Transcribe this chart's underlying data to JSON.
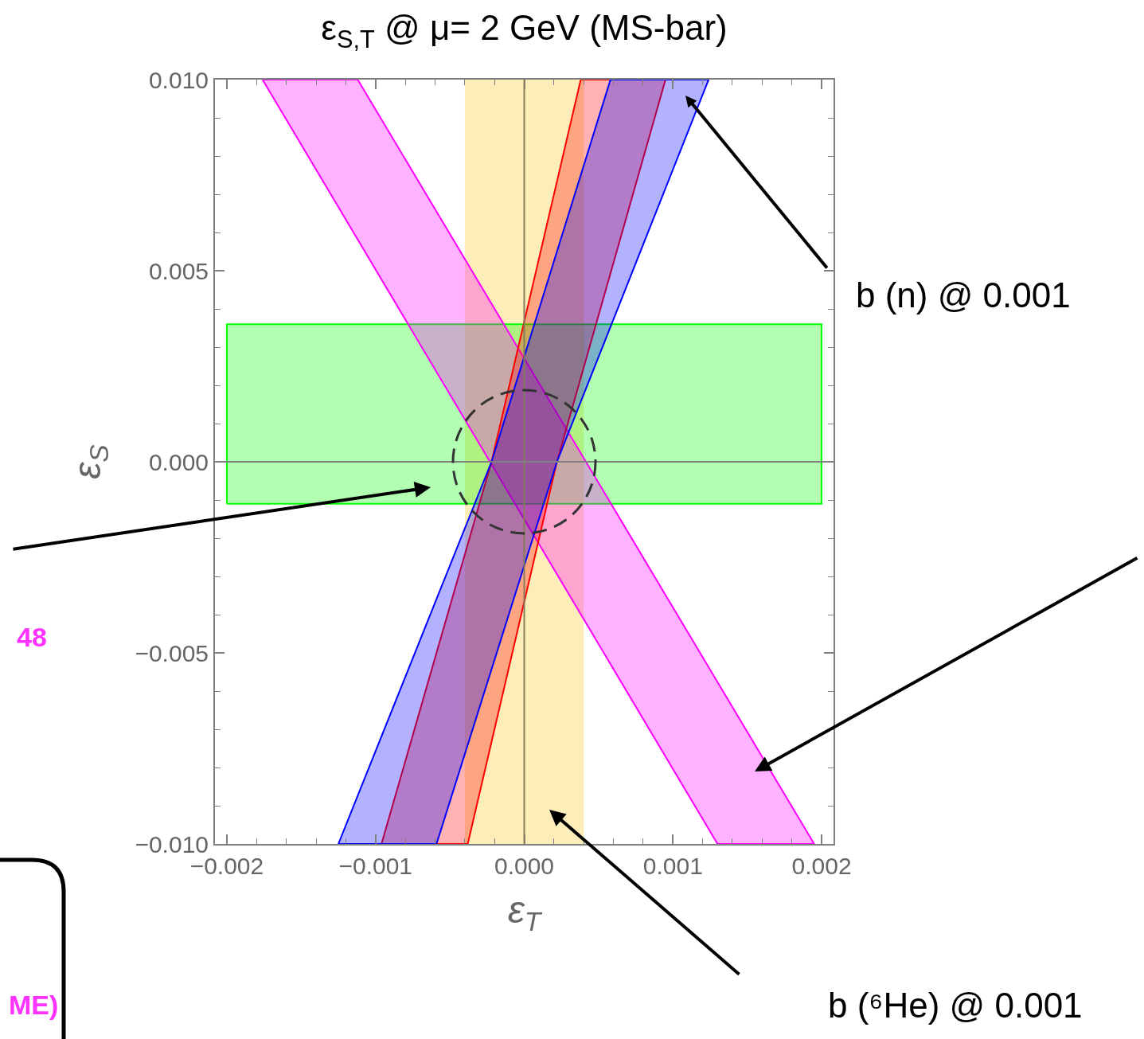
{
  "chart_data": {
    "type": "area",
    "title": "ε$_{S,T}$ @ μ= 2 GeV (MS-bar)",
    "xlabel": "ε$_{T}$",
    "ylabel": "ε$_{S}$",
    "xlim": [
      -0.00208,
      0.00208
    ],
    "ylim": [
      -0.01,
      0.01
    ],
    "xticks": [
      {
        "value": -0.002,
        "label": "−0.002"
      },
      {
        "value": -0.0018,
        "label": null
      },
      {
        "value": -0.0016,
        "label": null
      },
      {
        "value": -0.0014,
        "label": null
      },
      {
        "value": -0.0012,
        "label": null
      },
      {
        "value": -0.001,
        "label": "−0.001"
      },
      {
        "value": -0.0008,
        "label": null
      },
      {
        "value": -0.0006,
        "label": null
      },
      {
        "value": -0.0004,
        "label": null
      },
      {
        "value": -0.0002,
        "label": null
      },
      {
        "value": 0,
        "label": "0.000"
      },
      {
        "value": 0.0002,
        "label": null
      },
      {
        "value": 0.0004,
        "label": null
      },
      {
        "value": 0.0006,
        "label": null
      },
      {
        "value": 0.0008,
        "label": null
      },
      {
        "value": 0.001,
        "label": "0.001"
      },
      {
        "value": 0.0012,
        "label": null
      },
      {
        "value": 0.0014,
        "label": null
      },
      {
        "value": 0.0016,
        "label": null
      },
      {
        "value": 0.0018,
        "label": null
      },
      {
        "value": 0.002,
        "label": "0.002"
      }
    ],
    "yticks": [
      {
        "value": -0.01,
        "label": "−0.010"
      },
      {
        "value": -0.009,
        "label": null
      },
      {
        "value": -0.008,
        "label": null
      },
      {
        "value": -0.007,
        "label": null
      },
      {
        "value": -0.006,
        "label": null
      },
      {
        "value": -0.005,
        "label": "−0.005"
      },
      {
        "value": -0.004,
        "label": null
      },
      {
        "value": -0.003,
        "label": null
      },
      {
        "value": -0.002,
        "label": null
      },
      {
        "value": -0.001,
        "label": null
      },
      {
        "value": 0,
        "label": "0.000"
      },
      {
        "value": 0.001,
        "label": null
      },
      {
        "value": 0.002,
        "label": null
      },
      {
        "value": 0.003,
        "label": null
      },
      {
        "value": 0.004,
        "label": null
      },
      {
        "value": 0.005,
        "label": "0.005"
      },
      {
        "value": 0.006,
        "label": null
      },
      {
        "value": 0.007,
        "label": null
      },
      {
        "value": 0.008,
        "label": null
      },
      {
        "value": 0.009,
        "label": null
      },
      {
        "value": 0.01,
        "label": "0.010"
      }
    ],
    "grid": false,
    "bands": [
      {
        "axis": "x",
        "from": -0.0004,
        "to": 0.0004,
        "color": "#fcedb9"
      }
    ],
    "ref_lines": [
      {
        "axis": "x",
        "value": 0,
        "color": "#857c5a"
      },
      {
        "axis": "y",
        "value": 0,
        "color": "#808080"
      }
    ],
    "series": [
      {
        "color": "#00ff00",
        "x": [
          -0.002,
          0.002,
          0.002,
          -0.002,
          -0.002
        ],
        "values": [
          -0.0011,
          -0.0011,
          0.0036,
          0.0036,
          -0.0011
        ]
      },
      {
        "color": "#ff00ff",
        "x": [
          -0.00176,
          -0.00112,
          0.00195,
          0.0013,
          -0.00176
        ],
        "values": [
          0.01,
          0.01,
          -0.01,
          -0.01,
          0.01
        ]
      },
      {
        "color": "#ff0000",
        "x": [
          -0.00096,
          -0.00022,
          0.00038,
          0.00095,
          0.00022,
          -0.00038,
          -0.00096
        ],
        "values": [
          -0.01,
          0,
          0.01,
          0.01,
          0,
          -0.01,
          -0.01
        ]
      },
      {
        "color": "#0000ff",
        "x": [
          -0.00125,
          -0.00022,
          0.00058,
          0.00124,
          0.00022,
          -0.00059,
          -0.00125
        ],
        "values": [
          -0.01,
          0,
          0.01,
          0.01,
          0,
          -0.01,
          -0.01
        ]
      }
    ],
    "annotations": [
      "b (n) @ 0.001",
      "b (⁶He) @ 0.001",
      "48",
      "ME)"
    ]
  }
}
